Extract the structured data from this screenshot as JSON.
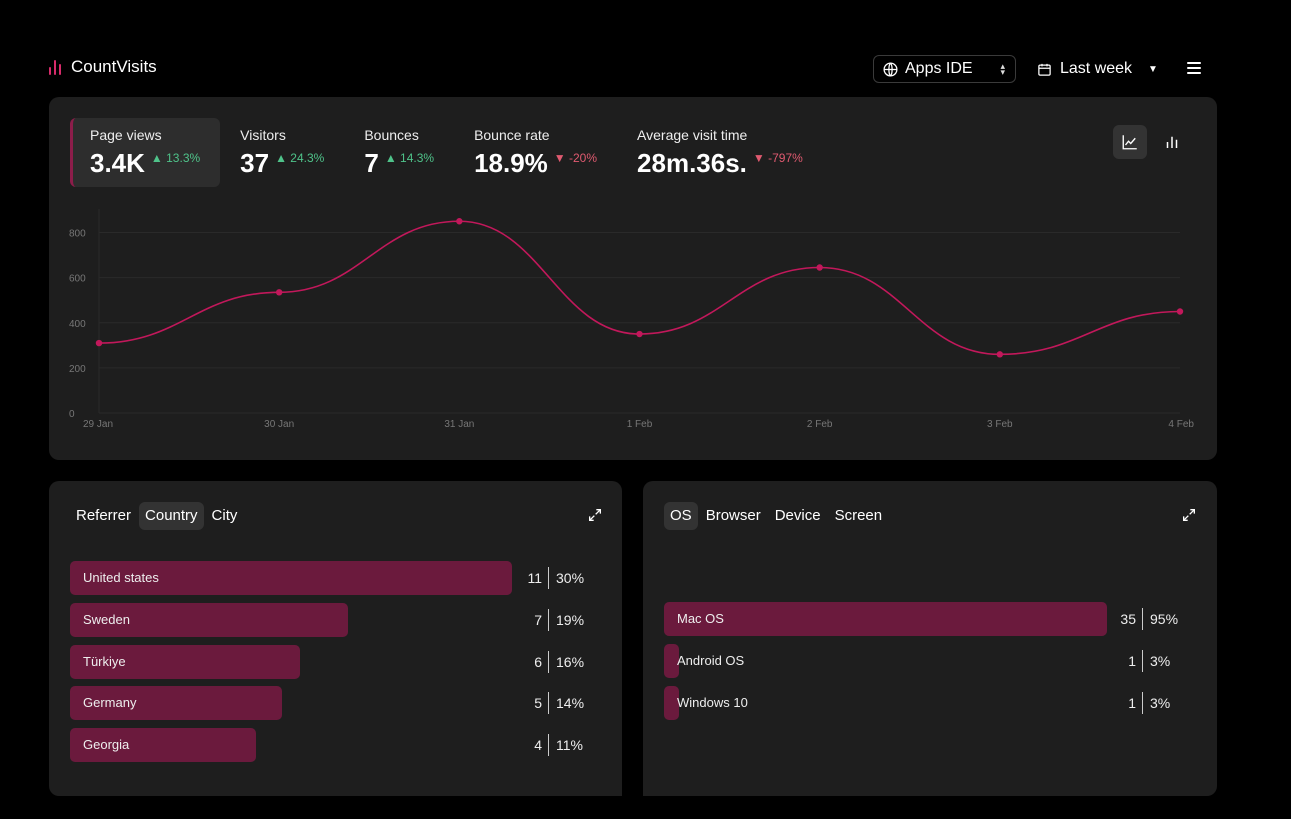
{
  "app": {
    "name": "CountVisits"
  },
  "header": {
    "app_select_value": "Apps IDE",
    "range_select_value": "Last week"
  },
  "stats": [
    {
      "label": "Page views",
      "value": "3.4K",
      "delta": "13.3%",
      "direction": "up"
    },
    {
      "label": "Visitors",
      "value": "37",
      "delta": "24.3%",
      "direction": "up"
    },
    {
      "label": "Bounces",
      "value": "7",
      "delta": "14.3%",
      "direction": "up"
    },
    {
      "label": "Bounce rate",
      "value": "18.9%",
      "delta": "-20%",
      "direction": "down"
    },
    {
      "label": "Average visit time",
      "value": "28m.36s.",
      "delta": "-797%",
      "direction": "down"
    }
  ],
  "chart_toggle": {
    "selected": "line",
    "options": [
      "line-chart-icon",
      "bar-chart-icon"
    ]
  },
  "colors": {
    "accent": "#d72b6a",
    "line": "#c2185b",
    "bar": "#6b1a3d",
    "up": "#4fc38a",
    "down": "#e05a70",
    "panel": "#1e1e1e"
  },
  "chart_data": {
    "type": "line",
    "title": "",
    "xlabel": "",
    "ylabel": "",
    "x": [
      "29 Jan",
      "30 Jan",
      "31 Jan",
      "1 Feb",
      "2 Feb",
      "3 Feb",
      "4 Feb"
    ],
    "series": [
      {
        "values": [
          310,
          535,
          850,
          350,
          645,
          260,
          450
        ]
      }
    ],
    "y_ticks": [
      0,
      200,
      400,
      600,
      800
    ],
    "ylim": [
      0,
      860
    ],
    "grid": true,
    "legend": "none"
  },
  "referrer_panel": {
    "tabs": [
      "Referrer",
      "Country",
      "City"
    ],
    "active_tab": "Country",
    "rows": [
      {
        "label": "United states",
        "count": "11",
        "pct": "30%",
        "share": 1.0
      },
      {
        "label": "Sweden",
        "count": "7",
        "pct": "19%",
        "share": 0.63
      },
      {
        "label": "Türkiye",
        "count": "6",
        "pct": "16%",
        "share": 0.52
      },
      {
        "label": "Germany",
        "count": "5",
        "pct": "14%",
        "share": 0.48
      },
      {
        "label": "Georgia",
        "count": "4",
        "pct": "11%",
        "share": 0.42
      }
    ]
  },
  "os_panel": {
    "tabs": [
      "OS",
      "Browser",
      "Device",
      "Screen"
    ],
    "active_tab": "OS",
    "rows": [
      {
        "label": "Mac OS",
        "count": "35",
        "pct": "95%",
        "share": 1.0
      },
      {
        "label": "Android OS",
        "count": "1",
        "pct": "3%",
        "share": 0.03
      },
      {
        "label": "Windows 10",
        "count": "1",
        "pct": "3%",
        "share": 0.03
      }
    ]
  }
}
